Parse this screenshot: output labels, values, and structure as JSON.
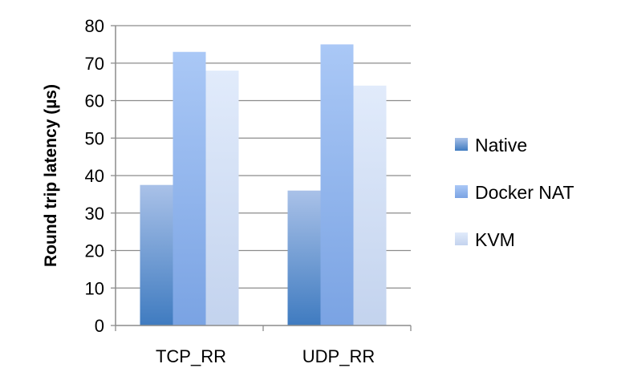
{
  "chart_data": {
    "type": "bar",
    "categories": [
      "TCP_RR",
      "UDP_RR"
    ],
    "series": [
      {
        "name": "Native",
        "values": [
          37.5,
          36
        ],
        "color": "#4a7fc0"
      },
      {
        "name": "Docker NAT",
        "values": [
          73,
          75
        ],
        "color": "#8fb2ea"
      },
      {
        "name": "KVM",
        "values": [
          68,
          64
        ],
        "color": "#cfdcf2"
      }
    ],
    "title": "",
    "xlabel": "",
    "ylabel": "Round trip latency (µs)",
    "ylim": [
      0,
      80
    ],
    "yticks": [
      0,
      10,
      20,
      30,
      40,
      50,
      60,
      70,
      80
    ],
    "grid": true,
    "legend_position": "right"
  }
}
